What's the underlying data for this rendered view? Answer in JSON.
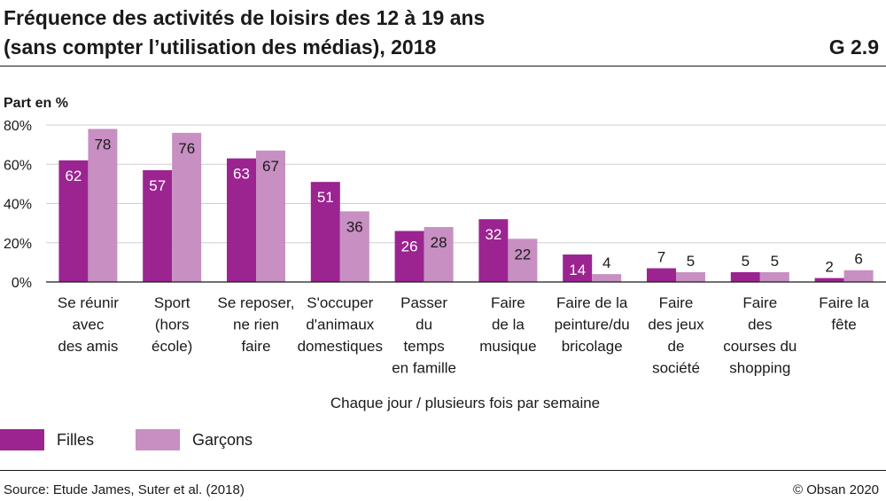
{
  "header": {
    "title_line1": "Fréquence des activités de loisirs des 12 à 19 ans",
    "title_line2": "(sans compter l’utilisation des médias), 2018",
    "figure_code": "G 2.9"
  },
  "footer": {
    "source": "Source: Etude James, Suter et al. (2018)",
    "copyright": "© Obsan 2020"
  },
  "colors": {
    "filles": "#9b2491",
    "garcons": "#c78fc2",
    "grid": "#cfcfcf",
    "axis": "#1a1a1a"
  },
  "chart_data": {
    "type": "bar",
    "title": "Fréquence des activités de loisirs des 12 à 19 ans (sans compter l’utilisation des médias), 2018",
    "ylabel": "Part en %",
    "xlabel": "Chaque jour / plusieurs fois par semaine",
    "ylim": [
      0,
      80
    ],
    "yticks": [
      "0%",
      "20%",
      "40%",
      "60%",
      "80%"
    ],
    "ytick_values": [
      0,
      20,
      40,
      60,
      80
    ],
    "categories": [
      [
        "Se réunir",
        "avec",
        "des amis"
      ],
      [
        "Sport",
        "(hors",
        "école)"
      ],
      [
        "Se reposer,",
        "ne rien",
        "faire"
      ],
      [
        "S'occuper",
        "d'animaux",
        "domestiques"
      ],
      [
        "Passer",
        "du",
        "temps",
        "en famille"
      ],
      [
        "Faire",
        "de la",
        "musique"
      ],
      [
        "Faire de la",
        "peinture/du",
        "bricolage"
      ],
      [
        "Faire",
        "des jeux",
        "de",
        "société"
      ],
      [
        "Faire",
        "des",
        "courses du",
        "shopping"
      ],
      [
        "Faire la",
        "fête"
      ]
    ],
    "series": [
      {
        "name": "Filles",
        "values": [
          62,
          57,
          63,
          51,
          26,
          32,
          14,
          7,
          5,
          2
        ]
      },
      {
        "name": "Garçons",
        "values": [
          78,
          76,
          67,
          36,
          28,
          22,
          4,
          5,
          5,
          6
        ]
      }
    ],
    "legend_position": "bottom-left"
  }
}
